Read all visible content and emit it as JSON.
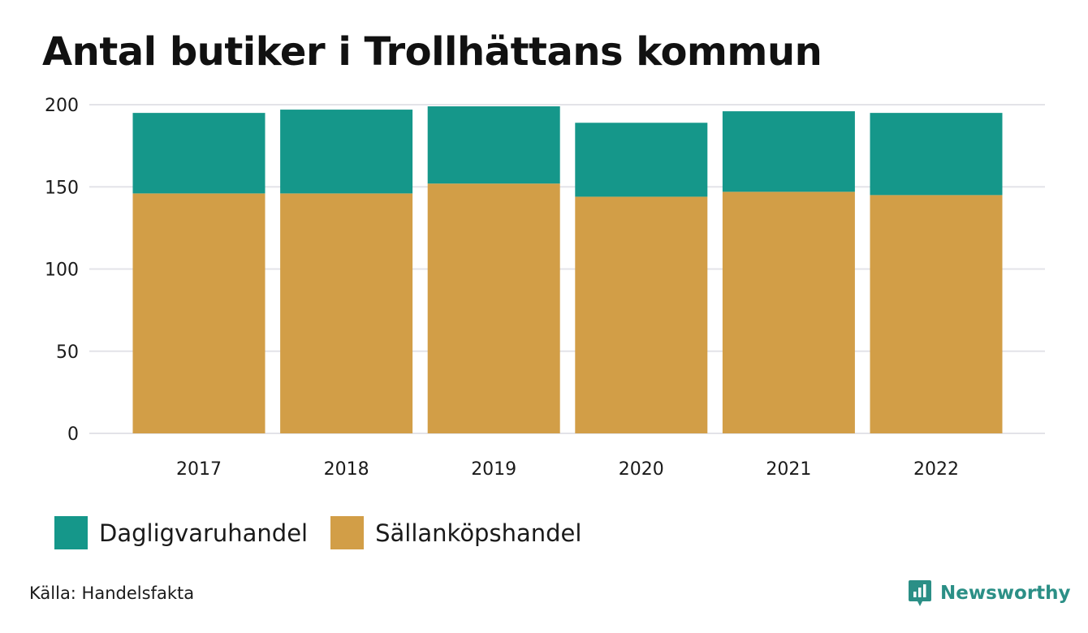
{
  "title": "Antal butiker i Trollhättans kommun",
  "source": "Källa: Handelsfakta",
  "brand": "Newsworthy",
  "colors": {
    "daglig": "#15978a",
    "sallan": "#d29e47",
    "grid": "#e3e3e8",
    "brand": "#2b8f86"
  },
  "chart_data": {
    "type": "bar",
    "stacked": true,
    "categories": [
      "2017",
      "2018",
      "2019",
      "2020",
      "2021",
      "2022"
    ],
    "series": [
      {
        "name": "Sällanköpshandel",
        "values": [
          146,
          146,
          152,
          144,
          147,
          145
        ],
        "color": "#d29e47"
      },
      {
        "name": "Dagligvaruhandel",
        "values": [
          49,
          51,
          47,
          45,
          49,
          50
        ],
        "color": "#15978a"
      }
    ],
    "yticks": [
      "0",
      "50",
      "100",
      "150",
      "200"
    ],
    "ylim": [
      0,
      200
    ],
    "grid": true,
    "legend_position": "bottom-left"
  }
}
